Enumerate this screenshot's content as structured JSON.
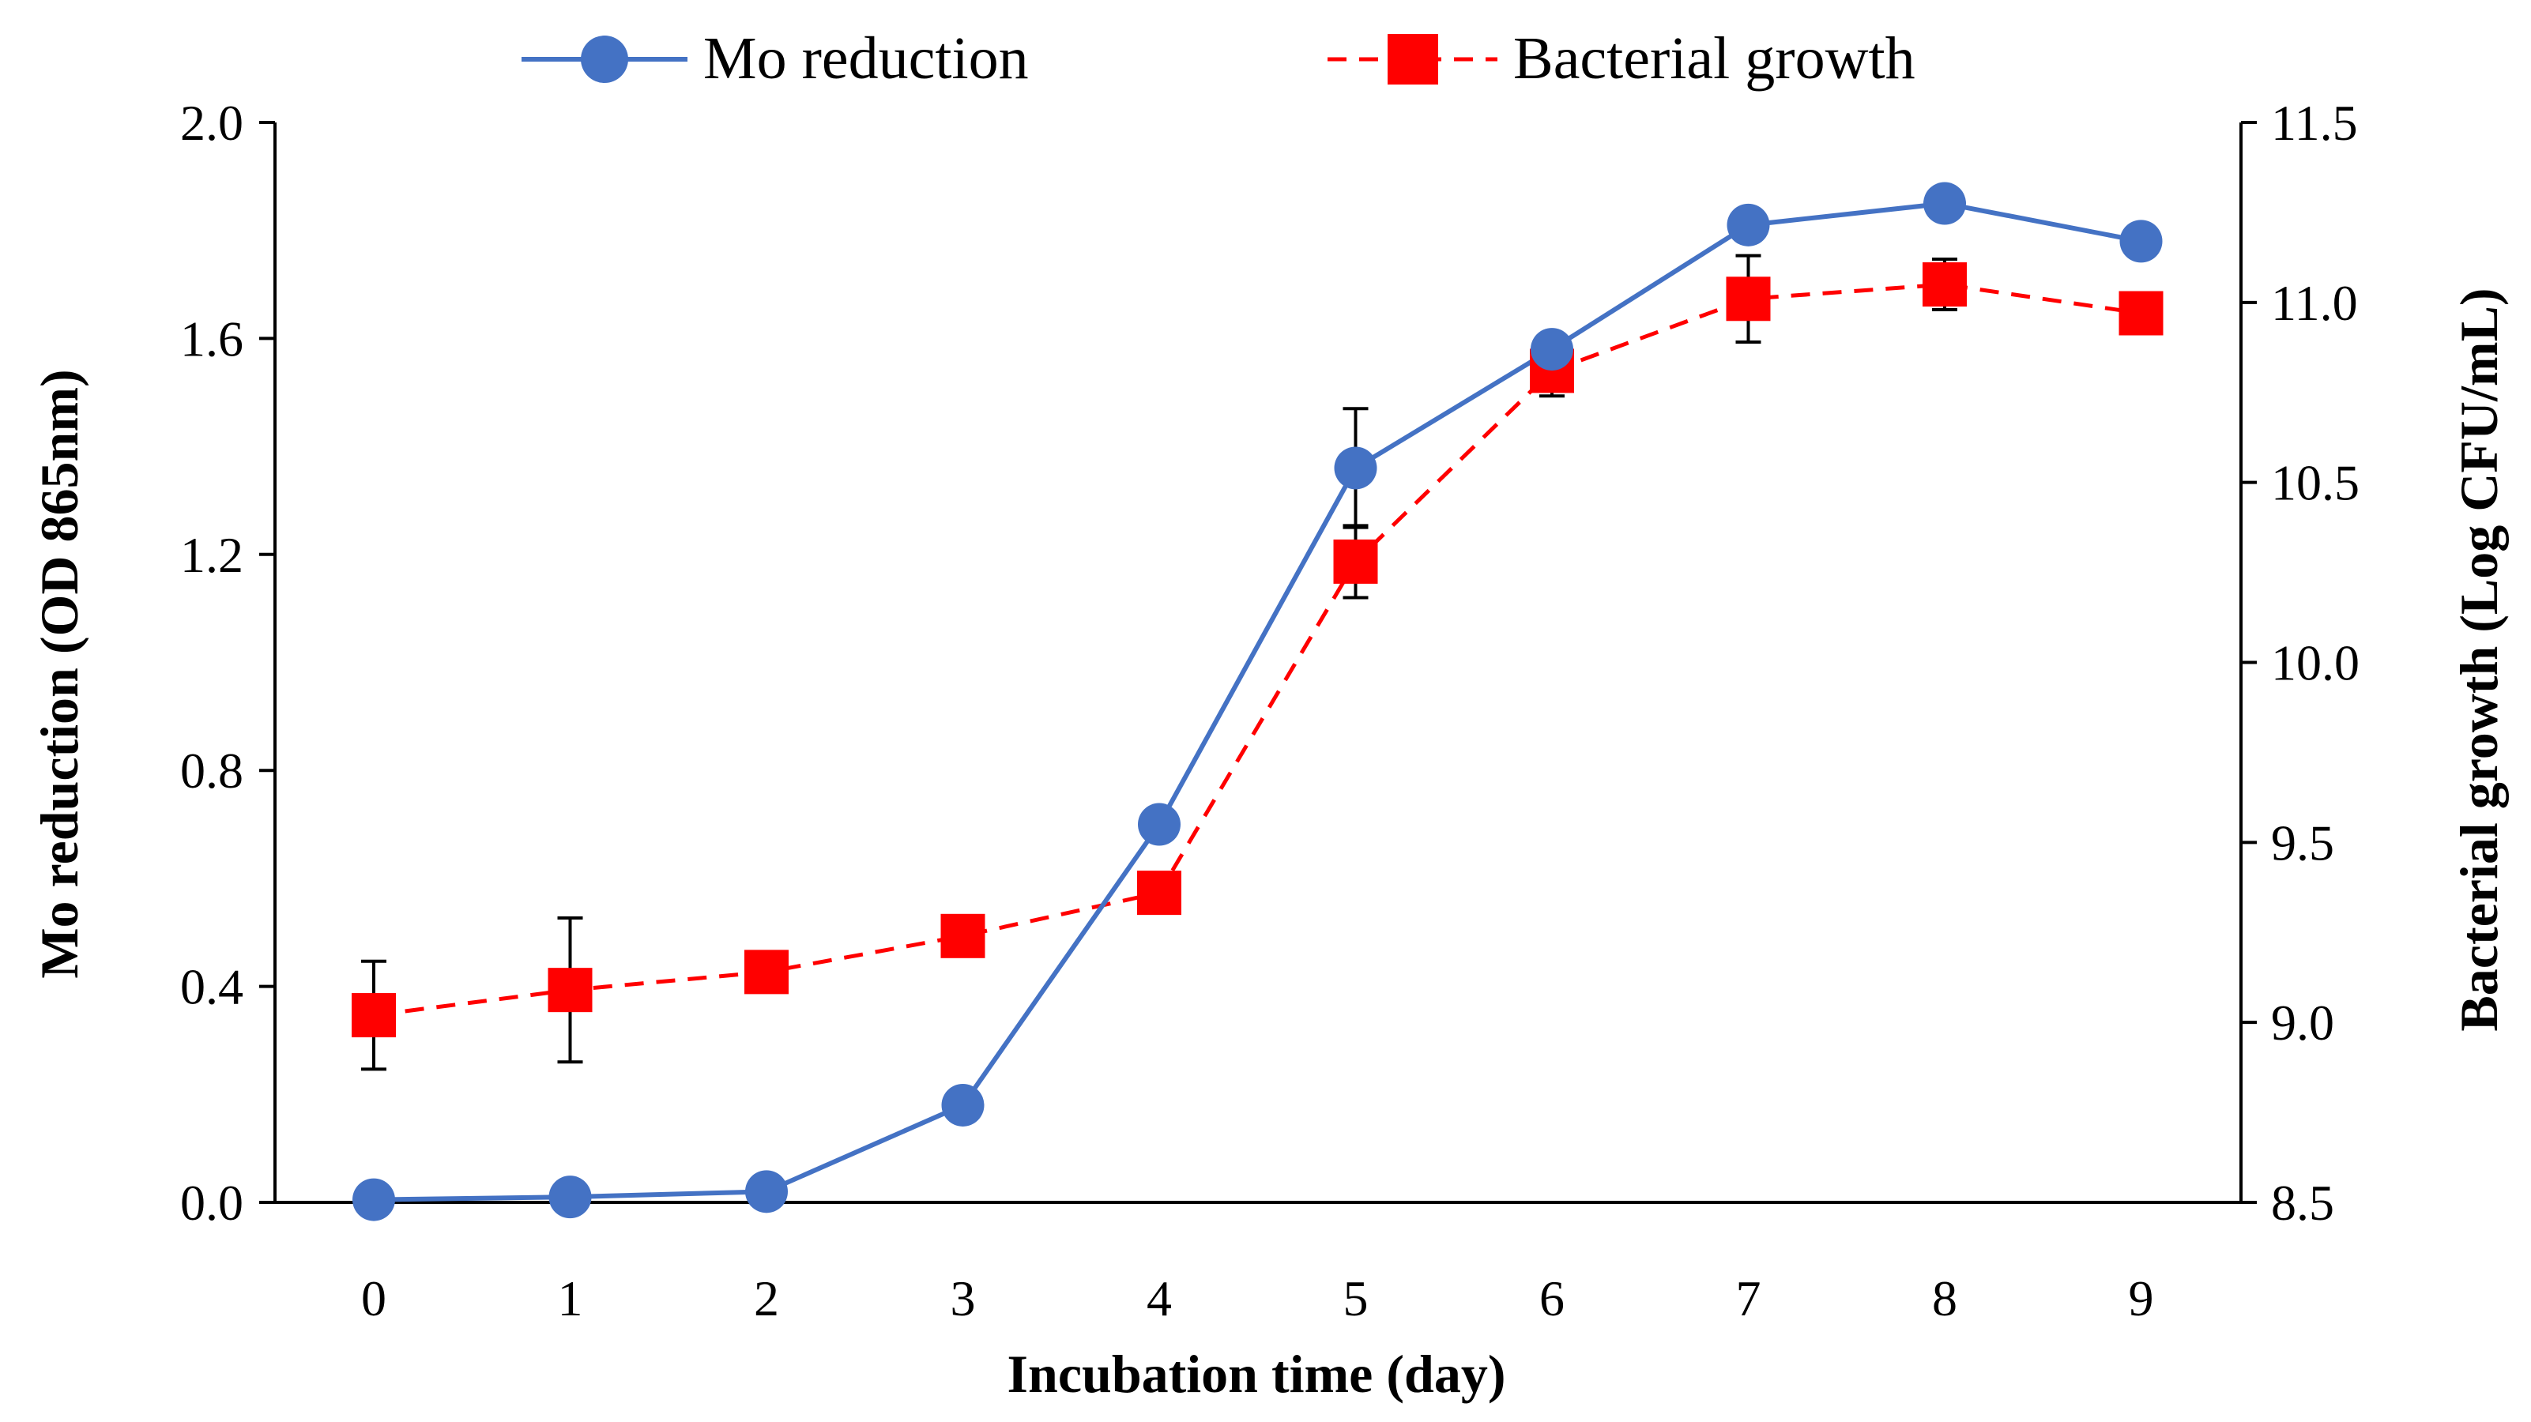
{
  "chart_data": {
    "type": "line",
    "x": [
      0,
      1,
      2,
      3,
      4,
      5,
      6,
      7,
      8,
      9
    ],
    "xticks": [
      "0",
      "1",
      "2",
      "3",
      "4",
      "5",
      "6",
      "7",
      "8",
      "9"
    ],
    "xlabel": "Incubation time (day)",
    "ylabel_left": "Mo reduction (OD 865nm)",
    "ylabel_right": "Bacterial growth (Log CFU/mL)",
    "ylim_left": [
      0.0,
      2.0
    ],
    "yticks_left": [
      "0.0",
      "0.4",
      "0.8",
      "1.2",
      "1.6",
      "2.0"
    ],
    "yticks_left_values": [
      0.0,
      0.4,
      0.8,
      1.2,
      1.6,
      2.0
    ],
    "ylim_right": [
      8.5,
      11.5
    ],
    "yticks_right": [
      "8.5",
      "9.0",
      "9.5",
      "10.0",
      "10.5",
      "11.0",
      "11.5"
    ],
    "yticks_right_values": [
      8.5,
      9.0,
      9.5,
      10.0,
      10.5,
      11.0,
      11.5
    ],
    "legend_position": "top-center",
    "series": [
      {
        "name": "Mo reduction",
        "axis": "left",
        "color": "#4472C4",
        "marker": "circle",
        "line_style": "solid",
        "values": [
          0.005,
          0.01,
          0.02,
          0.18,
          0.7,
          1.36,
          1.58,
          1.81,
          1.85,
          1.78
        ],
        "errors": [
          0.0,
          0.0,
          0.0,
          0.0,
          0.0,
          0.11,
          0.0,
          0.0,
          0.0,
          0.0
        ]
      },
      {
        "name": "Bacterial growth",
        "axis": "right",
        "color": "#FF0000",
        "marker": "square",
        "line_style": "dashed",
        "values": [
          9.02,
          9.09,
          9.14,
          9.24,
          9.36,
          10.28,
          10.81,
          11.01,
          11.05,
          10.97
        ],
        "errors": [
          0.15,
          0.2,
          0.0,
          0.0,
          0.0,
          0.1,
          0.07,
          0.12,
          0.07,
          0.0
        ]
      }
    ]
  }
}
